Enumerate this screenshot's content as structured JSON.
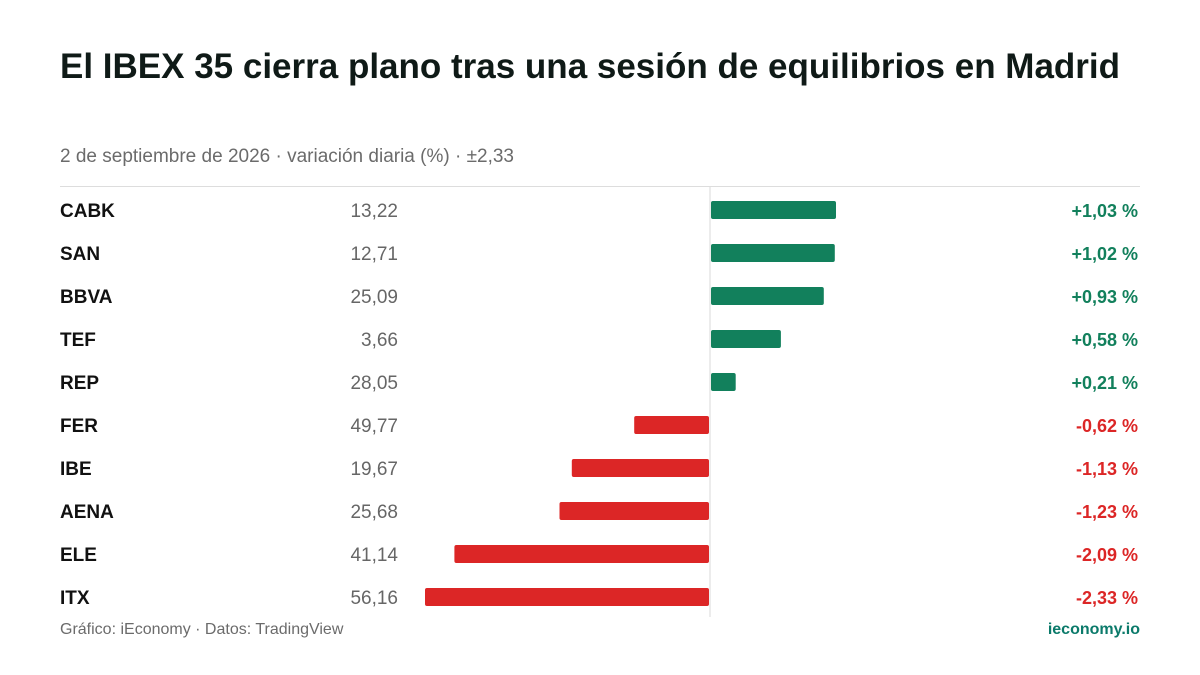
{
  "title": "El IBEX 35 cierra plano tras una sesión de equilibrios en Madrid",
  "subtitle": "2 de septiembre de 2026 · variación diaria (%) · ±2,33",
  "footer": {
    "source": "Gráfico: iEconomy · Datos: TradingView",
    "brand": "ieconomy.io"
  },
  "colors": {
    "positive": "#12805c",
    "negative": "#dc2626",
    "brand": "#0b7a6a"
  },
  "chart_data": {
    "type": "bar",
    "orientation": "horizontal",
    "xlim": [
      -2.33,
      2.33
    ],
    "grid": false,
    "rows": [
      {
        "ticker": "CABK",
        "price": "13,22",
        "change": 1.03,
        "label": "+1,03 %"
      },
      {
        "ticker": "SAN",
        "price": "12,71",
        "change": 1.02,
        "label": "+1,02 %"
      },
      {
        "ticker": "BBVA",
        "price": "25,09",
        "change": 0.93,
        "label": "+0,93 %"
      },
      {
        "ticker": "TEF",
        "price": "3,66",
        "change": 0.58,
        "label": "+0,58 %"
      },
      {
        "ticker": "REP",
        "price": "28,05",
        "change": 0.21,
        "label": "+0,21 %"
      },
      {
        "ticker": "FER",
        "price": "49,77",
        "change": -0.62,
        "label": "-0,62 %"
      },
      {
        "ticker": "IBE",
        "price": "19,67",
        "change": -1.13,
        "label": "-1,13 %"
      },
      {
        "ticker": "AENA",
        "price": "25,68",
        "change": -1.23,
        "label": "-1,23 %"
      },
      {
        "ticker": "ELE",
        "price": "41,14",
        "change": -2.09,
        "label": "-2,09 %"
      },
      {
        "ticker": "ITX",
        "price": "56,16",
        "change": -2.33,
        "label": "-2,33 %"
      }
    ]
  }
}
